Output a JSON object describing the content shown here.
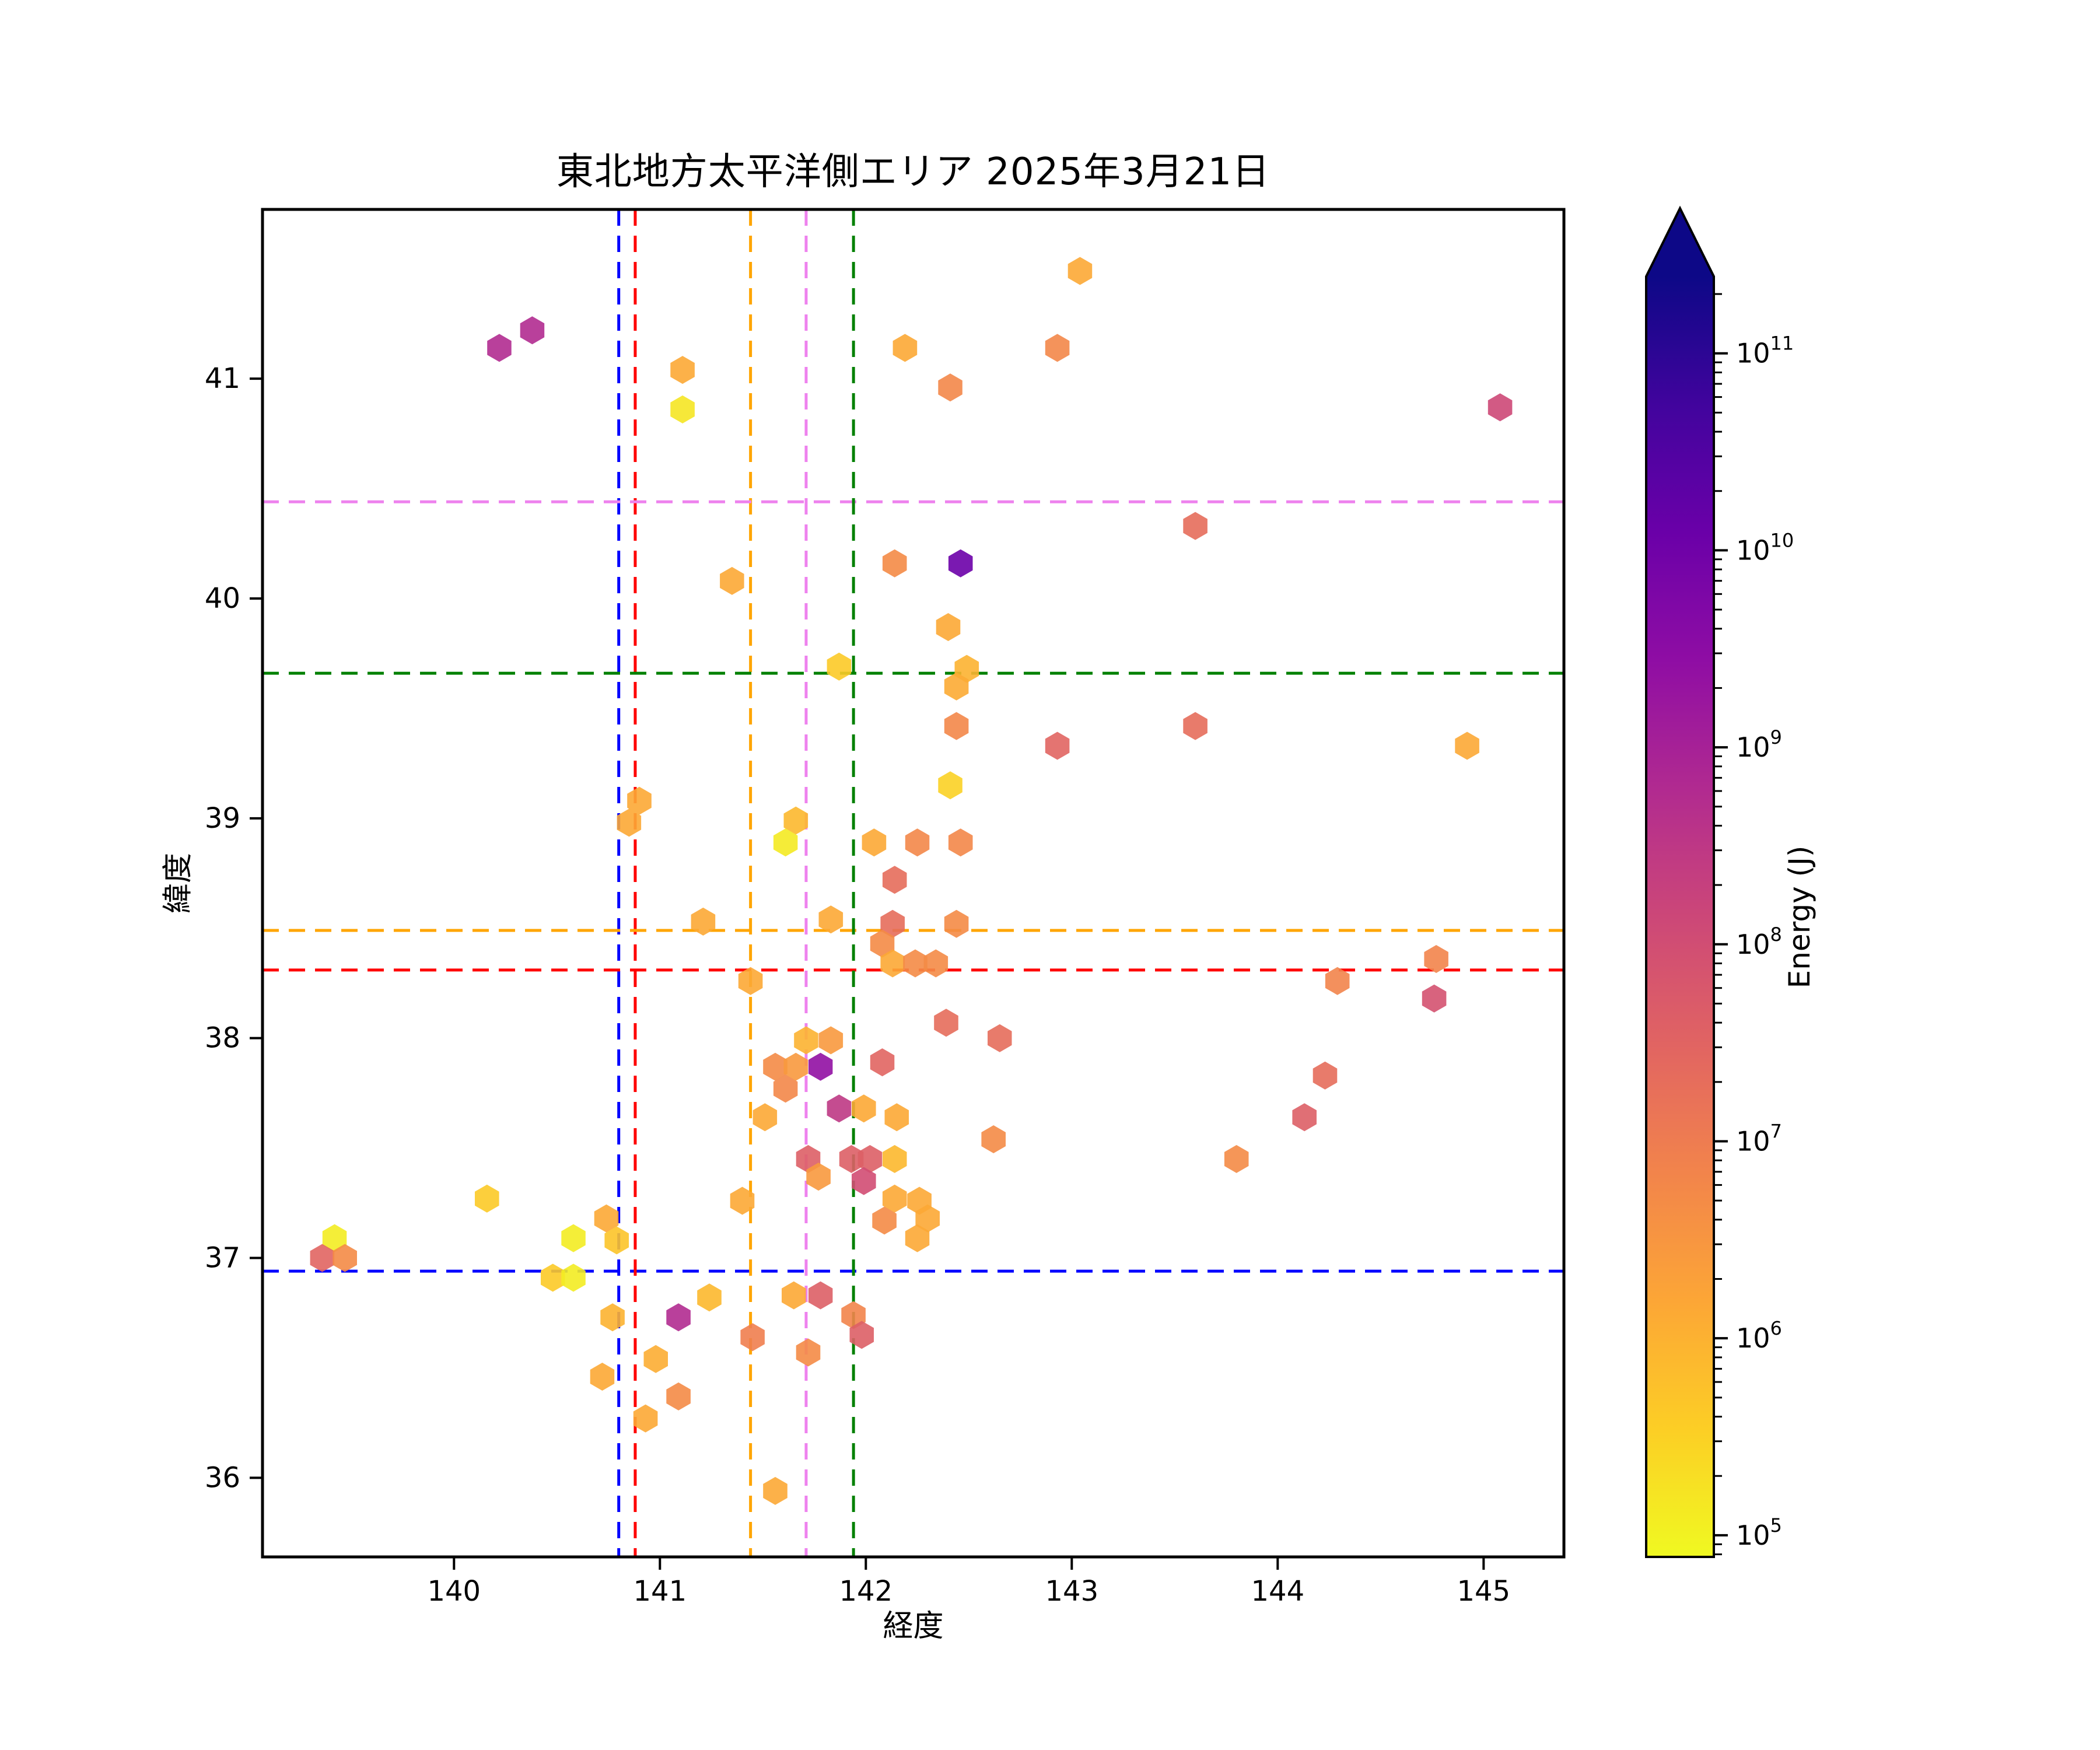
{
  "chart_data": {
    "type": "scatter",
    "title": "東北地方太平洋側エリア 2025年3月21日",
    "xlabel": "経度",
    "ylabel": "緯度",
    "xlim": [
      139.07,
      145.39
    ],
    "ylim": [
      35.64,
      41.77
    ],
    "xticks": [
      140,
      141,
      142,
      143,
      144,
      145
    ],
    "yticks": [
      36,
      37,
      38,
      39,
      40,
      41
    ],
    "grid": false,
    "marker": "hexagon",
    "colorbar": {
      "label": "Energy (J)",
      "scale": "log",
      "tick_exponents": [
        5,
        6,
        7,
        8,
        9,
        10,
        11
      ],
      "log_vmin": 4.89,
      "log_vmax": 11.39,
      "colormap": "plasma_r",
      "extend": "max"
    },
    "reference_lines": [
      {
        "name": "blue",
        "color": "#0000ff",
        "lon": 140.8,
        "lat": 36.94
      },
      {
        "name": "red",
        "color": "#ff0000",
        "lon": 140.88,
        "lat": 38.31
      },
      {
        "name": "orange",
        "color": "#ffa500",
        "lon": 141.44,
        "lat": 38.49
      },
      {
        "name": "violet",
        "color": "#ee82ee",
        "lon": 141.71,
        "lat": 40.44
      },
      {
        "name": "green",
        "color": "#008000",
        "lon": 141.94,
        "lat": 39.66
      }
    ],
    "points": [
      {
        "lon": 140.22,
        "lat": 41.14,
        "energy": 600000000.0
      },
      {
        "lon": 140.38,
        "lat": 41.22,
        "energy": 600000000.0
      },
      {
        "lon": 141.11,
        "lat": 41.04,
        "energy": 1400000.0
      },
      {
        "lon": 141.11,
        "lat": 40.86,
        "energy": 150000.0
      },
      {
        "lon": 143.04,
        "lat": 41.49,
        "energy": 1400000.0
      },
      {
        "lon": 142.19,
        "lat": 41.14,
        "energy": 1400000.0
      },
      {
        "lon": 142.93,
        "lat": 41.14,
        "energy": 6000000.0
      },
      {
        "lon": 142.41,
        "lat": 40.96,
        "energy": 6000000.0
      },
      {
        "lon": 141.35,
        "lat": 40.08,
        "energy": 1400000.0
      },
      {
        "lon": 142.14,
        "lat": 40.16,
        "energy": 5000000.0
      },
      {
        "lon": 142.46,
        "lat": 40.16,
        "energy": 12000000000.0
      },
      {
        "lon": 142.4,
        "lat": 39.87,
        "energy": 1400000.0
      },
      {
        "lon": 141.87,
        "lat": 39.69,
        "energy": 400000.0
      },
      {
        "lon": 142.49,
        "lat": 39.68,
        "energy": 1000000.0
      },
      {
        "lon": 142.44,
        "lat": 39.6,
        "energy": 1300000.0
      },
      {
        "lon": 142.44,
        "lat": 39.42,
        "energy": 6000000.0
      },
      {
        "lon": 142.93,
        "lat": 39.33,
        "energy": 30000000.0
      },
      {
        "lon": 143.6,
        "lat": 39.42,
        "energy": 20000000.0
      },
      {
        "lon": 144.92,
        "lat": 39.33,
        "energy": 1400000.0
      },
      {
        "lon": 142.41,
        "lat": 39.15,
        "energy": 300000.0
      },
      {
        "lon": 141.66,
        "lat": 38.99,
        "energy": 800000.0
      },
      {
        "lon": 141.61,
        "lat": 38.89,
        "energy": 130000.0
      },
      {
        "lon": 142.04,
        "lat": 38.89,
        "energy": 1400000.0
      },
      {
        "lon": 142.25,
        "lat": 38.89,
        "energy": 6000000.0
      },
      {
        "lon": 142.46,
        "lat": 38.89,
        "energy": 6000000.0
      },
      {
        "lon": 142.14,
        "lat": 38.72,
        "energy": 20000000.0
      },
      {
        "lon": 140.9,
        "lat": 39.08,
        "energy": 1400000.0
      },
      {
        "lon": 140.85,
        "lat": 38.98,
        "energy": 1400000.0
      },
      {
        "lon": 141.21,
        "lat": 38.53,
        "energy": 1400000.0
      },
      {
        "lon": 141.83,
        "lat": 38.54,
        "energy": 1400000.0
      },
      {
        "lon": 142.13,
        "lat": 38.52,
        "energy": 20000000.0
      },
      {
        "lon": 142.44,
        "lat": 38.52,
        "energy": 5000000.0
      },
      {
        "lon": 142.08,
        "lat": 38.43,
        "energy": 5000000.0
      },
      {
        "lon": 142.13,
        "lat": 38.34,
        "energy": 1400000.0
      },
      {
        "lon": 142.24,
        "lat": 38.34,
        "energy": 5000000.0
      },
      {
        "lon": 142.34,
        "lat": 38.34,
        "energy": 5000000.0
      },
      {
        "lon": 141.44,
        "lat": 38.26,
        "energy": 1400000.0
      },
      {
        "lon": 142.39,
        "lat": 38.07,
        "energy": 20000000.0
      },
      {
        "lon": 142.65,
        "lat": 38.0,
        "energy": 20000000.0
      },
      {
        "lon": 141.71,
        "lat": 37.99,
        "energy": 1000000.0
      },
      {
        "lon": 141.83,
        "lat": 37.99,
        "energy": 2800000.0
      },
      {
        "lon": 141.56,
        "lat": 37.87,
        "energy": 5000000.0
      },
      {
        "lon": 141.66,
        "lat": 37.87,
        "energy": 2800000.0
      },
      {
        "lon": 141.78,
        "lat": 37.87,
        "energy": 2500000000.0
      },
      {
        "lon": 141.61,
        "lat": 37.77,
        "energy": 6000000.0
      },
      {
        "lon": 142.08,
        "lat": 37.89,
        "energy": 30000000.0
      },
      {
        "lon": 141.87,
        "lat": 37.68,
        "energy": 300000000.0
      },
      {
        "lon": 141.99,
        "lat": 37.68,
        "energy": 1400000.0
      },
      {
        "lon": 142.15,
        "lat": 37.64,
        "energy": 1400000.0
      },
      {
        "lon": 141.51,
        "lat": 37.64,
        "energy": 1400000.0
      },
      {
        "lon": 144.77,
        "lat": 38.36,
        "energy": 7000000.0
      },
      {
        "lon": 144.29,
        "lat": 38.26,
        "energy": 7000000.0
      },
      {
        "lon": 144.76,
        "lat": 38.18,
        "energy": 80000000.0
      },
      {
        "lon": 144.23,
        "lat": 37.83,
        "energy": 20000000.0
      },
      {
        "lon": 144.13,
        "lat": 37.64,
        "energy": 40000000.0
      },
      {
        "lon": 143.8,
        "lat": 37.45,
        "energy": 5000000.0
      },
      {
        "lon": 145.08,
        "lat": 40.87,
        "energy": 130000000.0
      },
      {
        "lon": 143.6,
        "lat": 40.33,
        "energy": 20000000.0
      },
      {
        "lon": 142.62,
        "lat": 37.54,
        "energy": 5000000.0
      },
      {
        "lon": 141.72,
        "lat": 37.45,
        "energy": 40000000.0
      },
      {
        "lon": 141.93,
        "lat": 37.45,
        "energy": 40000000.0
      },
      {
        "lon": 142.02,
        "lat": 37.45,
        "energy": 40000000.0
      },
      {
        "lon": 142.14,
        "lat": 37.45,
        "energy": 800000.0
      },
      {
        "lon": 141.77,
        "lat": 37.37,
        "energy": 2800000.0
      },
      {
        "lon": 141.99,
        "lat": 37.35,
        "energy": 100000000.0
      },
      {
        "lon": 141.4,
        "lat": 37.26,
        "energy": 1400000.0
      },
      {
        "lon": 142.14,
        "lat": 37.27,
        "energy": 1400000.0
      },
      {
        "lon": 142.26,
        "lat": 37.26,
        "energy": 1400000.0
      },
      {
        "lon": 142.09,
        "lat": 37.17,
        "energy": 5000000.0
      },
      {
        "lon": 142.3,
        "lat": 37.18,
        "energy": 1400000.0
      },
      {
        "lon": 142.25,
        "lat": 37.09,
        "energy": 1400000.0
      },
      {
        "lon": 141.24,
        "lat": 36.82,
        "energy": 800000.0
      },
      {
        "lon": 141.65,
        "lat": 36.83,
        "energy": 1400000.0
      },
      {
        "lon": 141.78,
        "lat": 36.83,
        "energy": 40000000.0
      },
      {
        "lon": 141.94,
        "lat": 36.74,
        "energy": 7000000.0
      },
      {
        "lon": 141.98,
        "lat": 36.65,
        "energy": 40000000.0
      },
      {
        "lon": 141.45,
        "lat": 36.64,
        "energy": 9000000.0
      },
      {
        "lon": 141.72,
        "lat": 36.57,
        "energy": 5000000.0
      },
      {
        "lon": 141.56,
        "lat": 35.94,
        "energy": 1400000.0
      },
      {
        "lon": 140.16,
        "lat": 37.27,
        "energy": 400000.0
      },
      {
        "lon": 139.42,
        "lat": 37.09,
        "energy": 120000.0
      },
      {
        "lon": 139.36,
        "lat": 37.0,
        "energy": 30000000.0
      },
      {
        "lon": 139.47,
        "lat": 37.0,
        "energy": 5000000.0
      },
      {
        "lon": 140.74,
        "lat": 37.18,
        "energy": 1400000.0
      },
      {
        "lon": 140.58,
        "lat": 37.09,
        "energy": 120000.0
      },
      {
        "lon": 140.79,
        "lat": 37.08,
        "energy": 500000.0
      },
      {
        "lon": 140.48,
        "lat": 36.91,
        "energy": 400000.0
      },
      {
        "lon": 140.58,
        "lat": 36.91,
        "energy": 120000.0
      },
      {
        "lon": 140.77,
        "lat": 36.73,
        "energy": 1000000.0
      },
      {
        "lon": 141.09,
        "lat": 36.73,
        "energy": 600000000.0
      },
      {
        "lon": 140.98,
        "lat": 36.54,
        "energy": 1200000.0
      },
      {
        "lon": 140.72,
        "lat": 36.46,
        "energy": 1400000.0
      },
      {
        "lon": 140.93,
        "lat": 36.27,
        "energy": 1400000.0
      },
      {
        "lon": 141.09,
        "lat": 36.37,
        "energy": 5000000.0
      }
    ]
  }
}
